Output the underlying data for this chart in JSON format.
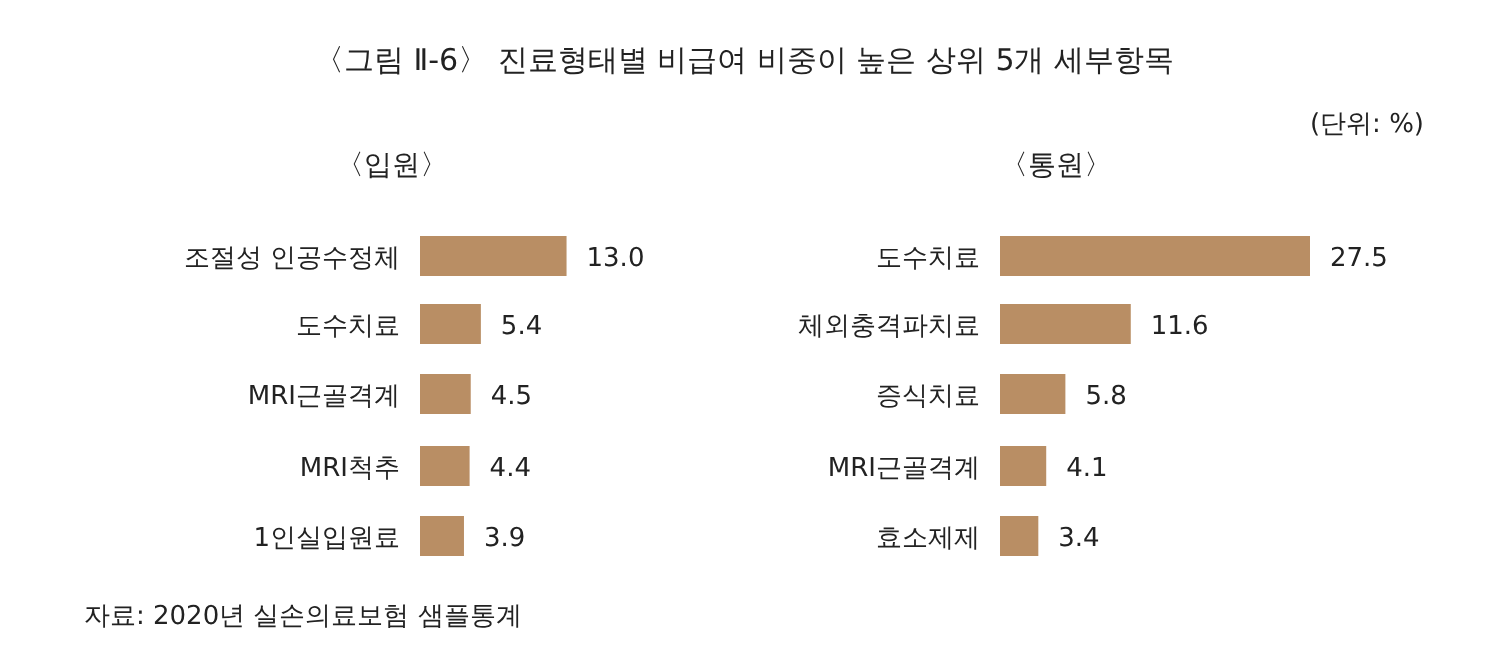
{
  "chart_data": [
    {
      "type": "bar",
      "orientation": "horizontal",
      "title": "〈입원〉",
      "categories": [
        "조절성 인공수정체",
        "도수치료",
        "MRI근골격계",
        "MRI척추",
        "1인실입원료"
      ],
      "values": [
        13.0,
        5.4,
        4.5,
        4.4,
        3.9
      ],
      "color": "#b98e64",
      "value_labels": [
        "13.0",
        "5.4",
        "4.5",
        "4.4",
        "3.9"
      ],
      "annotations": [
        "〈그림 Ⅱ-6〉 진료형태별 비급여 비중이 높은 상위 5개 세부항목",
        "(단위: %)",
        "자료: 2020년 실손의료보험 샘플통계"
      ]
    },
    {
      "type": "bar",
      "orientation": "horizontal",
      "title": "〈통원〉",
      "categories": [
        "도수치료",
        "체외충격파치료",
        "증식치료",
        "MRI근골격계",
        "효소제제"
      ],
      "values": [
        27.5,
        11.6,
        5.8,
        4.1,
        3.4
      ],
      "color": "#b98e64",
      "value_labels": [
        "27.5",
        "11.6",
        "5.8",
        "4.1",
        "3.4"
      ]
    }
  ]
}
